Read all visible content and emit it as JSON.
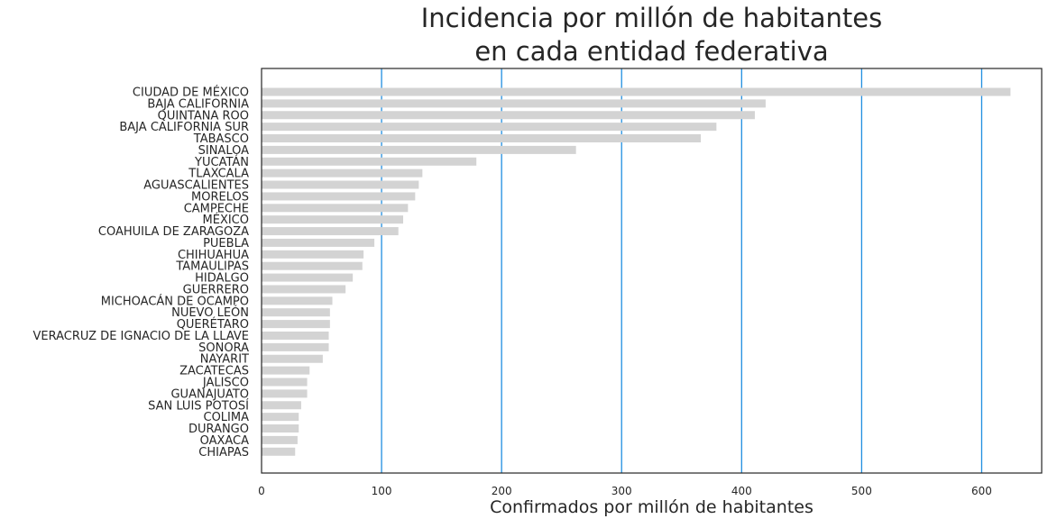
{
  "chart_data": {
    "type": "bar",
    "orientation": "horizontal",
    "title_line1": "Incidencia por millón de habitantes",
    "title_line2": "en cada entidad federativa",
    "xlabel": "Confirmados por millón de habitantes",
    "ylabel": "",
    "xlim": [
      0,
      650
    ],
    "xticks": [
      0,
      100,
      200,
      300,
      400,
      500,
      600
    ],
    "grid": "vertical",
    "bar_color": "#d3d3d3",
    "grid_color": "#1f8ee0",
    "categories": [
      "CIUDAD DE MÉXICO",
      "BAJA CALIFORNIA",
      "QUINTANA ROO",
      "BAJA CALIFORNIA SUR",
      "TABASCO",
      "SINALOA",
      "YUCATÁN",
      "TLAXCALA",
      "AGUASCALIENTES",
      "MORELOS",
      "CAMPECHE",
      "MÉXICO",
      "COAHUILA DE ZARAGOZA",
      "PUEBLA",
      "CHIHUAHUA",
      "TAMAULIPAS",
      "HIDALGO",
      "GUERRERO",
      "MICHOACÁN DE OCAMPO",
      "NUEVO LEÓN",
      "QUERÉTARO",
      "VERACRUZ DE IGNACIO DE LA LLAVE",
      "SONORA",
      "NAYARIT",
      "ZACATECAS",
      "JALISCO",
      "GUANAJUATO",
      "SAN LUIS POTOSÍ",
      "COLIMA",
      "DURANGO",
      "OAXACA",
      "CHIAPAS"
    ],
    "values": [
      624,
      420,
      411,
      379,
      366,
      262,
      179,
      134,
      131,
      128,
      122,
      118,
      114,
      94,
      85,
      84,
      76,
      70,
      59,
      57,
      57,
      56,
      56,
      51,
      40,
      38,
      38,
      33,
      31,
      31,
      30,
      28
    ]
  }
}
